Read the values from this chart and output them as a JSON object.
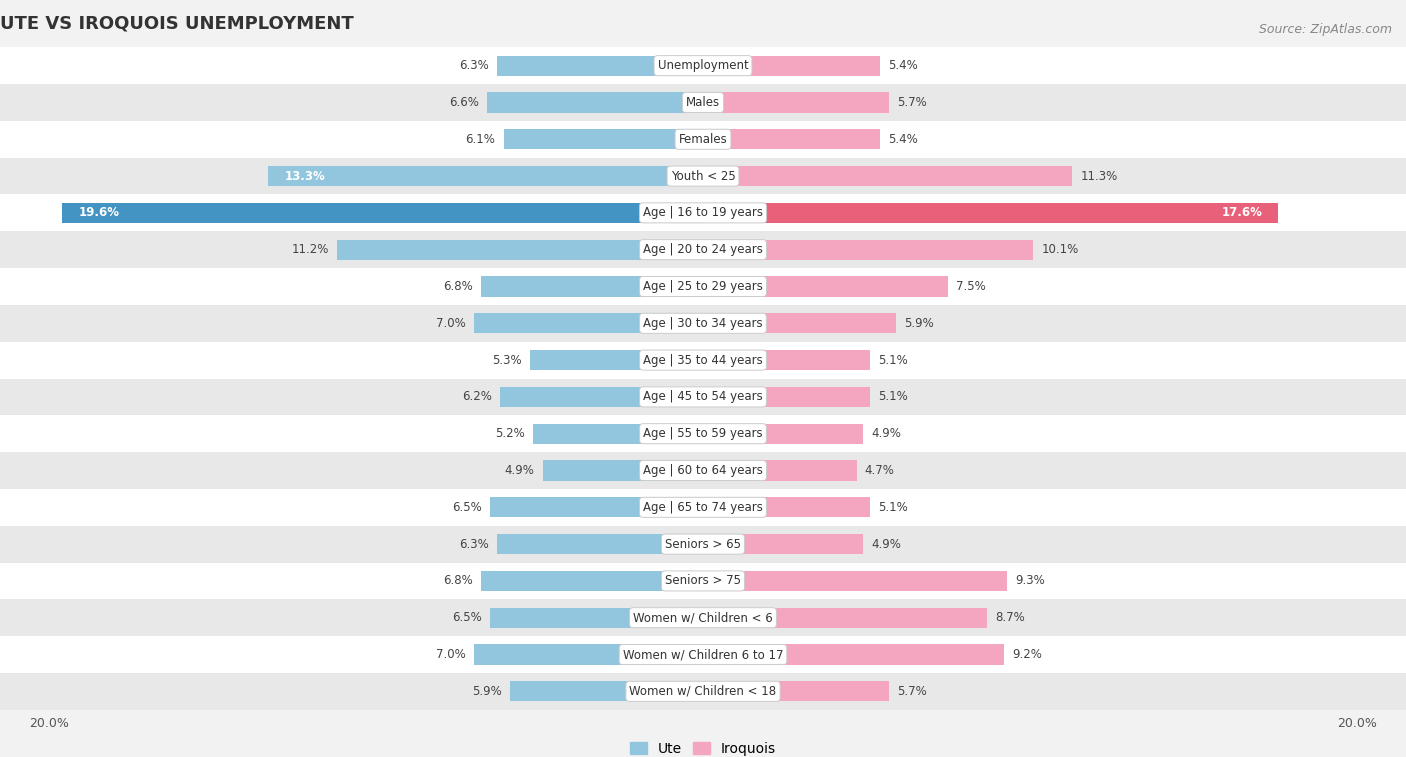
{
  "title": "UTE VS IROQUOIS UNEMPLOYMENT",
  "source": "Source: ZipAtlas.com",
  "categories": [
    "Unemployment",
    "Males",
    "Females",
    "Youth < 25",
    "Age | 16 to 19 years",
    "Age | 20 to 24 years",
    "Age | 25 to 29 years",
    "Age | 30 to 34 years",
    "Age | 35 to 44 years",
    "Age | 45 to 54 years",
    "Age | 55 to 59 years",
    "Age | 60 to 64 years",
    "Age | 65 to 74 years",
    "Seniors > 65",
    "Seniors > 75",
    "Women w/ Children < 6",
    "Women w/ Children 6 to 17",
    "Women w/ Children < 18"
  ],
  "ute_values": [
    6.3,
    6.6,
    6.1,
    13.3,
    19.6,
    11.2,
    6.8,
    7.0,
    5.3,
    6.2,
    5.2,
    4.9,
    6.5,
    6.3,
    6.8,
    6.5,
    7.0,
    5.9
  ],
  "iroquois_values": [
    5.4,
    5.7,
    5.4,
    11.3,
    17.6,
    10.1,
    7.5,
    5.9,
    5.1,
    5.1,
    4.9,
    4.7,
    5.1,
    4.9,
    9.3,
    8.7,
    9.2,
    5.7
  ],
  "ute_color": "#92c5de",
  "iroquois_color": "#f4a6c0",
  "ute_highlight_color": "#4393c3",
  "iroquois_highlight_color": "#e8607a",
  "max_value": 20.0,
  "bg_color": "#f2f2f2",
  "row_color_light": "#ffffff",
  "row_color_dark": "#e8e8e8",
  "title_fontsize": 13,
  "label_fontsize": 8.5,
  "source_fontsize": 9
}
